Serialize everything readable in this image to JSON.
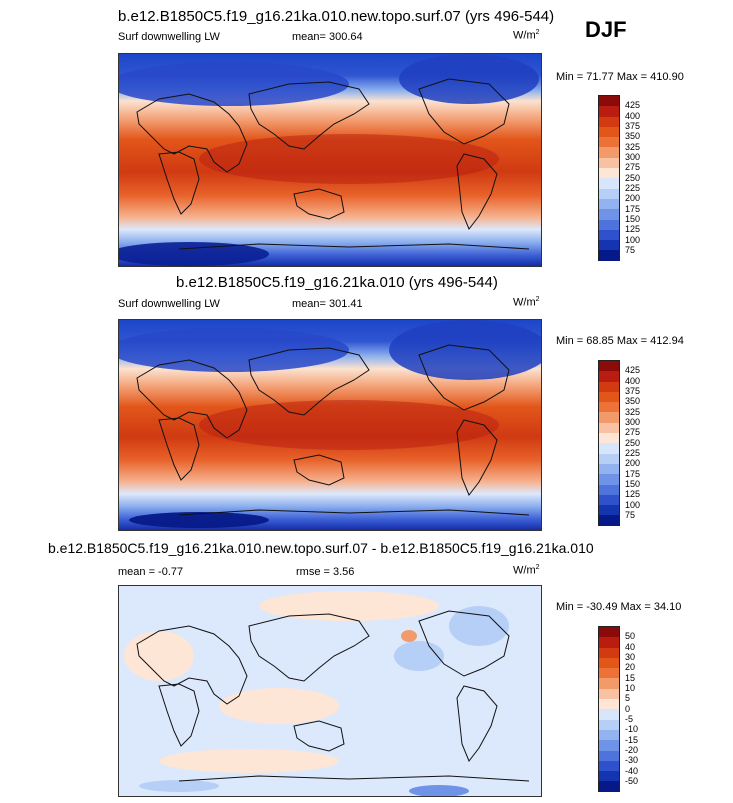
{
  "season": "DJF",
  "units": {
    "base": "W/m",
    "sup": "2"
  },
  "panels": [
    {
      "title": "b.e12.B1850C5.f19_g16.21ka.010.new.topo.surf.07 (yrs 496-544)",
      "variable": "Surf downwelling LW",
      "stat": "mean= 300.64",
      "minmax": "Min =  71.77 Max = 410.90",
      "colorbar": {
        "labels": [
          "425",
          "400",
          "375",
          "350",
          "325",
          "300",
          "275",
          "250",
          "225",
          "200",
          "175",
          "150",
          "125",
          "100",
          "75"
        ],
        "colors": [
          "#8b0a0a",
          "#b81d10",
          "#d23a12",
          "#e2561a",
          "#ec7238",
          "#f39a6b",
          "#f8c2a2",
          "#fde6d6",
          "#d8e6fb",
          "#b6cff6",
          "#93b3f0",
          "#6f93e6",
          "#4e73dc",
          "#2f52cc",
          "#1434b0",
          "#051a88"
        ]
      }
    },
    {
      "title": "b.e12.B1850C5.f19_g16.21ka.010 (yrs 496-544)",
      "variable": "Surf downwelling LW",
      "stat": "mean= 301.41",
      "minmax": "Min =  68.85 Max = 412.94",
      "colorbar": {
        "labels": [
          "425",
          "400",
          "375",
          "350",
          "325",
          "300",
          "275",
          "250",
          "225",
          "200",
          "175",
          "150",
          "125",
          "100",
          "75"
        ],
        "colors": [
          "#8b0a0a",
          "#b81d10",
          "#d23a12",
          "#e2561a",
          "#ec7238",
          "#f39a6b",
          "#f8c2a2",
          "#fde6d6",
          "#d8e6fb",
          "#b6cff6",
          "#93b3f0",
          "#6f93e6",
          "#4e73dc",
          "#2f52cc",
          "#1434b0",
          "#051a88"
        ]
      }
    },
    {
      "title": "b.e12.B1850C5.f19_g16.21ka.010.new.topo.surf.07 - b.e12.B1850C5.f19_g16.21ka.010",
      "variable": "",
      "stat": "mean =  -0.77",
      "rmse": "rmse =   3.56",
      "minmax": "Min = -30.49 Max =  34.10",
      "colorbar": {
        "labels": [
          "50",
          "40",
          "30",
          "20",
          "15",
          "10",
          "5",
          "0",
          "-5",
          "-10",
          "-15",
          "-20",
          "-30",
          "-40",
          "-50"
        ],
        "colors": [
          "#8b0a0a",
          "#b81d10",
          "#d23a12",
          "#e2561a",
          "#ec7238",
          "#f39a6b",
          "#f8c2a2",
          "#fde6d6",
          "#d8e6fb",
          "#b6cff6",
          "#93b3f0",
          "#6f93e6",
          "#4e73dc",
          "#2f52cc",
          "#1434b0",
          "#051a88"
        ]
      }
    }
  ]
}
